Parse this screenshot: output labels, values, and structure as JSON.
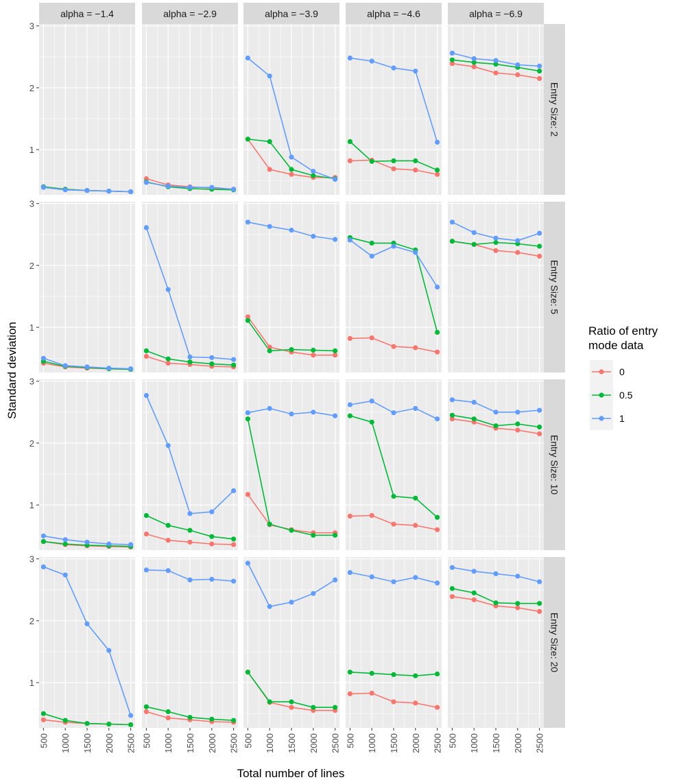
{
  "chart_data": {
    "type": "line",
    "facet_columns": [
      "alpha = −1.4",
      "alpha = −2.9",
      "alpha = −3.9",
      "alpha = −4.6",
      "alpha = −6.9"
    ],
    "facet_rows": [
      "Entry Size: 2",
      "Entry Size: 5",
      "Entry Size: 10",
      "Entry Size: 20"
    ],
    "x": [
      500,
      1000,
      1500,
      2000,
      2500
    ],
    "x_tick_labels": [
      "500",
      "1000",
      "1500",
      "2000",
      "2500"
    ],
    "y_ticks": [
      1,
      2,
      3
    ],
    "y_tick_labels": [
      "1",
      "2",
      "3"
    ],
    "xlabel": "Total number of lines",
    "ylabel": "Standard deviation",
    "xlim": [
      400,
      2600
    ],
    "ylim": [
      0.27,
      3.03
    ],
    "grid": true,
    "legend": {
      "title_lines": [
        "Ratio of entry",
        "mode data"
      ],
      "position": "right",
      "entries": [
        {
          "label": "0",
          "color": "#F8766D"
        },
        {
          "label": "0.5",
          "color": "#00BA38"
        },
        {
          "label": "1",
          "color": "#619CFF"
        }
      ]
    },
    "series_colors": [
      "#F8766D",
      "#00BA38",
      "#619CFF"
    ],
    "panels": [
      [
        [
          [
            0.4,
            0.36,
            0.34,
            0.33,
            0.32
          ],
          [
            0.4,
            0.36,
            0.34,
            0.33,
            0.32
          ],
          [
            0.39,
            0.35,
            0.34,
            0.33,
            0.32
          ]
        ],
        [
          [
            0.53,
            0.43,
            0.4,
            0.38,
            0.36
          ],
          [
            0.48,
            0.4,
            0.37,
            0.36,
            0.35
          ],
          [
            0.47,
            0.41,
            0.39,
            0.39,
            0.36
          ]
        ],
        [
          [
            1.17,
            0.68,
            0.6,
            0.55,
            0.55
          ],
          [
            1.17,
            1.13,
            0.68,
            0.58,
            0.53
          ],
          [
            2.48,
            2.19,
            0.88,
            0.65,
            0.52
          ]
        ],
        [
          [
            0.82,
            0.83,
            0.69,
            0.67,
            0.6
          ],
          [
            1.13,
            0.81,
            0.82,
            0.82,
            0.67
          ],
          [
            2.48,
            2.43,
            2.32,
            2.27,
            1.12
          ]
        ],
        [
          [
            2.39,
            2.34,
            2.24,
            2.21,
            2.15
          ],
          [
            2.45,
            2.41,
            2.38,
            2.33,
            2.27
          ],
          [
            2.56,
            2.47,
            2.44,
            2.37,
            2.35
          ]
        ]
      ],
      [
        [
          [
            0.42,
            0.36,
            0.34,
            0.33,
            0.32
          ],
          [
            0.45,
            0.37,
            0.35,
            0.33,
            0.32
          ],
          [
            0.5,
            0.38,
            0.36,
            0.34,
            0.33
          ]
        ],
        [
          [
            0.53,
            0.42,
            0.4,
            0.37,
            0.36
          ],
          [
            0.62,
            0.49,
            0.44,
            0.41,
            0.39
          ],
          [
            2.61,
            1.61,
            0.52,
            0.51,
            0.48
          ]
        ],
        [
          [
            1.17,
            0.68,
            0.6,
            0.55,
            0.55
          ],
          [
            1.11,
            0.62,
            0.64,
            0.63,
            0.62
          ],
          [
            2.7,
            2.63,
            2.57,
            2.47,
            2.42
          ]
        ],
        [
          [
            0.82,
            0.83,
            0.69,
            0.67,
            0.6
          ],
          [
            2.45,
            2.36,
            2.36,
            2.25,
            0.92
          ],
          [
            2.41,
            2.15,
            2.31,
            2.21,
            1.65
          ]
        ],
        [
          [
            2.39,
            2.34,
            2.24,
            2.21,
            2.15
          ],
          [
            2.39,
            2.34,
            2.37,
            2.35,
            2.31
          ],
          [
            2.7,
            2.53,
            2.44,
            2.4,
            2.52
          ]
        ]
      ],
      [
        [
          [
            0.41,
            0.36,
            0.34,
            0.33,
            0.32
          ],
          [
            0.41,
            0.37,
            0.35,
            0.34,
            0.33
          ],
          [
            0.5,
            0.44,
            0.4,
            0.37,
            0.36
          ]
        ],
        [
          [
            0.53,
            0.43,
            0.4,
            0.37,
            0.36
          ],
          [
            0.83,
            0.67,
            0.59,
            0.49,
            0.45
          ],
          [
            2.77,
            1.96,
            0.86,
            0.89,
            1.23
          ]
        ],
        [
          [
            1.17,
            0.68,
            0.6,
            0.55,
            0.55
          ],
          [
            2.39,
            0.69,
            0.59,
            0.51,
            0.51
          ],
          [
            2.49,
            2.56,
            2.47,
            2.5,
            2.44
          ]
        ],
        [
          [
            0.82,
            0.83,
            0.69,
            0.67,
            0.6
          ],
          [
            2.44,
            2.34,
            1.14,
            1.11,
            0.8
          ],
          [
            2.62,
            2.68,
            2.49,
            2.56,
            2.39
          ]
        ],
        [
          [
            2.39,
            2.34,
            2.24,
            2.21,
            2.15
          ],
          [
            2.45,
            2.39,
            2.28,
            2.31,
            2.26
          ],
          [
            2.7,
            2.66,
            2.5,
            2.5,
            2.53
          ]
        ]
      ],
      [
        [
          [
            0.4,
            0.36,
            0.34,
            0.33,
            0.32
          ],
          [
            0.5,
            0.39,
            0.34,
            0.33,
            0.32
          ],
          [
            2.87,
            2.74,
            1.95,
            1.52,
            0.47
          ]
        ],
        [
          [
            0.53,
            0.43,
            0.4,
            0.37,
            0.36
          ],
          [
            0.61,
            0.53,
            0.44,
            0.41,
            0.39
          ],
          [
            2.82,
            2.81,
            2.66,
            2.67,
            2.64
          ]
        ],
        [
          [
            1.17,
            0.68,
            0.6,
            0.55,
            0.55
          ],
          [
            1.17,
            0.69,
            0.69,
            0.6,
            0.6
          ],
          [
            2.93,
            2.23,
            2.3,
            2.44,
            2.66
          ]
        ],
        [
          [
            0.82,
            0.83,
            0.69,
            0.67,
            0.6
          ],
          [
            1.17,
            1.15,
            1.13,
            1.11,
            1.14
          ],
          [
            2.78,
            2.71,
            2.63,
            2.7,
            2.61
          ]
        ],
        [
          [
            2.39,
            2.34,
            2.24,
            2.21,
            2.15
          ],
          [
            2.52,
            2.45,
            2.29,
            2.28,
            2.28
          ],
          [
            2.86,
            2.8,
            2.76,
            2.72,
            2.63
          ]
        ]
      ]
    ]
  }
}
